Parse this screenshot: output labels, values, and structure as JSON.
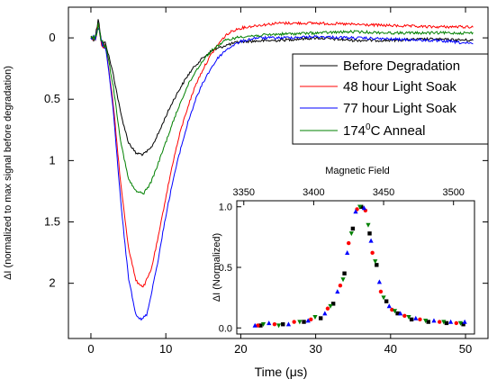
{
  "chart_data": [
    {
      "type": "line",
      "title": "",
      "xlabel": "Time (μs)",
      "ylabel": "ΔI (normalized to max signal before degradation)",
      "xlim": [
        -3,
        53
      ],
      "ylim": [
        2.45,
        -0.25
      ],
      "y_inverted": true,
      "grid": false,
      "legend_position": "top-right",
      "x_ticks": [
        0,
        10,
        20,
        30,
        40,
        50
      ],
      "y_ticks": [
        0,
        0.5,
        1,
        1.5,
        2
      ],
      "y_tick_labels": [
        "0",
        "0.5",
        "1",
        "1.5",
        "2"
      ],
      "series": [
        {
          "name": "Before Degradation",
          "color": "#000000",
          "minimum_x": 7,
          "minimum_y": 0.95,
          "final_y": 0.02,
          "points": [
            [
              0,
              0
            ],
            [
              0.6,
              0
            ],
            [
              1,
              -0.18
            ],
            [
              1.4,
              0.04
            ],
            [
              2,
              0.05
            ],
            [
              3,
              0.3
            ],
            [
              4,
              0.62
            ],
            [
              5,
              0.85
            ],
            [
              6,
              0.94
            ],
            [
              7,
              0.95
            ],
            [
              8,
              0.9
            ],
            [
              9,
              0.78
            ],
            [
              10,
              0.64
            ],
            [
              11,
              0.51
            ],
            [
              12,
              0.4
            ],
            [
              13,
              0.3
            ],
            [
              14,
              0.22
            ],
            [
              15,
              0.16
            ],
            [
              16,
              0.11
            ],
            [
              18,
              0.06
            ],
            [
              20,
              0.03
            ],
            [
              25,
              0.02
            ],
            [
              30,
              0.0
            ],
            [
              35,
              0.02
            ],
            [
              40,
              0.02
            ],
            [
              45,
              0.01
            ],
            [
              51,
              0.02
            ]
          ]
        },
        {
          "name": "48 hour Light Soak",
          "color": "#ff0000",
          "minimum_x": 7,
          "minimum_y": 2.03,
          "final_y": -0.09,
          "points": [
            [
              0,
              0
            ],
            [
              0.6,
              0
            ],
            [
              1,
              -0.12
            ],
            [
              1.4,
              0.04
            ],
            [
              2,
              0.08
            ],
            [
              3,
              0.55
            ],
            [
              4,
              1.2
            ],
            [
              5,
              1.7
            ],
            [
              6,
              1.98
            ],
            [
              7,
              2.03
            ],
            [
              8,
              1.9
            ],
            [
              9,
              1.62
            ],
            [
              10,
              1.3
            ],
            [
              11,
              1.0
            ],
            [
              12,
              0.75
            ],
            [
              13,
              0.55
            ],
            [
              14,
              0.38
            ],
            [
              15,
              0.25
            ],
            [
              16,
              0.14
            ],
            [
              17,
              0.05
            ],
            [
              18,
              -0.02
            ],
            [
              19,
              -0.06
            ],
            [
              20,
              -0.08
            ],
            [
              22,
              -0.1
            ],
            [
              25,
              -0.12
            ],
            [
              30,
              -0.12
            ],
            [
              35,
              -0.11
            ],
            [
              40,
              -0.1
            ],
            [
              45,
              -0.09
            ],
            [
              51,
              -0.09
            ]
          ]
        },
        {
          "name": "77 hour Light Soak",
          "color": "#0000ff",
          "minimum_x": 7,
          "minimum_y": 2.3,
          "final_y": 0.05,
          "points": [
            [
              0,
              0
            ],
            [
              0.6,
              0
            ],
            [
              1,
              -0.1
            ],
            [
              1.4,
              0.05
            ],
            [
              2,
              0.08
            ],
            [
              3,
              0.6
            ],
            [
              4,
              1.35
            ],
            [
              5,
              1.95
            ],
            [
              6,
              2.25
            ],
            [
              6.7,
              2.3
            ],
            [
              7.5,
              2.25
            ],
            [
              8,
              2.1
            ],
            [
              9,
              1.8
            ],
            [
              10,
              1.45
            ],
            [
              11,
              1.15
            ],
            [
              12,
              0.9
            ],
            [
              13,
              0.68
            ],
            [
              14,
              0.5
            ],
            [
              15,
              0.36
            ],
            [
              16,
              0.25
            ],
            [
              17,
              0.16
            ],
            [
              18,
              0.1
            ],
            [
              19,
              0.06
            ],
            [
              20,
              0.03
            ],
            [
              22,
              0.0
            ],
            [
              25,
              0.0
            ],
            [
              30,
              -0.01
            ],
            [
              35,
              0.0
            ],
            [
              40,
              0.01
            ],
            [
              45,
              0.02
            ],
            [
              48,
              0.03
            ],
            [
              51,
              0.05
            ]
          ]
        },
        {
          "name": "174°C Anneal",
          "color": "#008000",
          "minimum_x": 7,
          "minimum_y": 1.27,
          "final_y": -0.04,
          "points": [
            [
              0,
              0
            ],
            [
              0.6,
              0
            ],
            [
              1,
              -0.12
            ],
            [
              1.4,
              0.04
            ],
            [
              2,
              0.06
            ],
            [
              3,
              0.4
            ],
            [
              4,
              0.85
            ],
            [
              5,
              1.15
            ],
            [
              6,
              1.25
            ],
            [
              7,
              1.27
            ],
            [
              8,
              1.18
            ],
            [
              9,
              1.02
            ],
            [
              10,
              0.85
            ],
            [
              11,
              0.68
            ],
            [
              12,
              0.52
            ],
            [
              13,
              0.38
            ],
            [
              14,
              0.27
            ],
            [
              15,
              0.18
            ],
            [
              16,
              0.11
            ],
            [
              17,
              0.06
            ],
            [
              18,
              0.02
            ],
            [
              20,
              -0.01
            ],
            [
              25,
              -0.03
            ],
            [
              30,
              -0.04
            ],
            [
              35,
              -0.05
            ],
            [
              40,
              -0.04
            ],
            [
              45,
              -0.04
            ],
            [
              51,
              -0.04
            ]
          ]
        }
      ],
      "legend": {
        "before": "Before Degradation",
        "h48": "48 hour Light Soak",
        "h77": "77 hour Light Soak",
        "anneal_prefix": "174",
        "anneal_sup": "0",
        "anneal_suffix": "C Anneal"
      }
    },
    {
      "type": "scatter",
      "title": "",
      "xlabel": "Magnetic Field",
      "ylabel": "ΔI (Normalized)",
      "xlim": [
        3345,
        3515
      ],
      "ylim": [
        -0.05,
        1.05
      ],
      "x_axis_position": "top",
      "x_ticks": [
        3350,
        3400,
        3450,
        3500
      ],
      "y_ticks": [
        0.0,
        0.5,
        1.0
      ],
      "y_tick_labels": [
        "0.0",
        "0.5",
        "1.0"
      ],
      "grid": false,
      "series": [
        {
          "color": "#000000",
          "marker": "square",
          "points": [
            [
              3362,
              0.02
            ],
            [
              3378,
              0.03
            ],
            [
              3393,
              0.05
            ],
            [
              3405,
              0.08
            ],
            [
              3414,
              0.2
            ],
            [
              3422,
              0.45
            ],
            [
              3428,
              0.82
            ],
            [
              3434,
              1.0
            ],
            [
              3440,
              0.78
            ],
            [
              3445,
              0.52
            ],
            [
              3452,
              0.22
            ],
            [
              3460,
              0.12
            ],
            [
              3470,
              0.07
            ],
            [
              3482,
              0.05
            ],
            [
              3495,
              0.04
            ],
            [
              3507,
              0.03
            ]
          ]
        },
        {
          "color": "#ff0000",
          "marker": "circle",
          "points": [
            [
              3360,
              0.02
            ],
            [
              3372,
              0.03
            ],
            [
              3386,
              0.05
            ],
            [
              3398,
              0.07
            ],
            [
              3410,
              0.16
            ],
            [
              3419,
              0.35
            ],
            [
              3425,
              0.7
            ],
            [
              3431,
              0.98
            ],
            [
              3437,
              0.97
            ],
            [
              3442,
              0.62
            ],
            [
              3448,
              0.3
            ],
            [
              3456,
              0.15
            ],
            [
              3465,
              0.1
            ],
            [
              3476,
              0.07
            ],
            [
              3490,
              0.05
            ],
            [
              3502,
              0.04
            ]
          ]
        },
        {
          "color": "#0000ff",
          "marker": "triangle-up",
          "points": [
            [
              3358,
              0.02
            ],
            [
              3368,
              0.04
            ],
            [
              3382,
              0.03
            ],
            [
              3396,
              0.06
            ],
            [
              3408,
              0.12
            ],
            [
              3417,
              0.3
            ],
            [
              3424,
              0.62
            ],
            [
              3430,
              0.96
            ],
            [
              3436,
              0.99
            ],
            [
              3441,
              0.72
            ],
            [
              3447,
              0.38
            ],
            [
              3454,
              0.18
            ],
            [
              3462,
              0.12
            ],
            [
              3473,
              0.08
            ],
            [
              3486,
              0.06
            ],
            [
              3498,
              0.05
            ],
            [
              3508,
              0.05
            ]
          ]
        },
        {
          "color": "#008000",
          "marker": "triangle-down",
          "points": [
            [
              3364,
              0.03
            ],
            [
              3375,
              0.02
            ],
            [
              3390,
              0.05
            ],
            [
              3401,
              0.09
            ],
            [
              3412,
              0.18
            ],
            [
              3421,
              0.4
            ],
            [
              3427,
              0.78
            ],
            [
              3433,
              1.0
            ],
            [
              3439,
              0.85
            ],
            [
              3444,
              0.55
            ],
            [
              3450,
              0.25
            ],
            [
              3458,
              0.14
            ],
            [
              3468,
              0.09
            ],
            [
              3480,
              0.06
            ],
            [
              3493,
              0.05
            ],
            [
              3505,
              0.04
            ]
          ]
        }
      ]
    }
  ]
}
